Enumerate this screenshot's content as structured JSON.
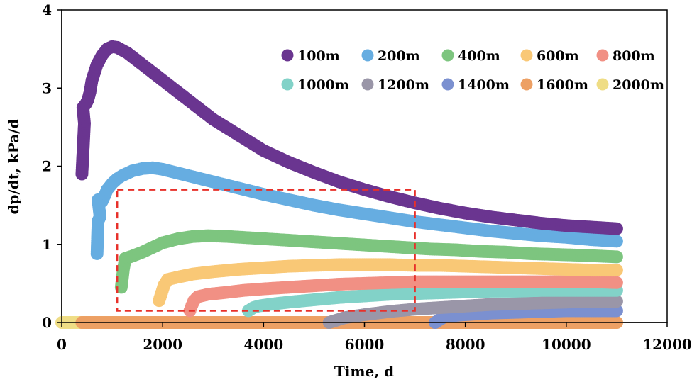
{
  "chart_data": {
    "type": "scatter",
    "title": "",
    "xlabel": "Time, d",
    "ylabel": "dp/dt, kPa/d",
    "xlim": [
      0,
      12000
    ],
    "ylim": [
      0,
      4
    ],
    "xticks": [
      0,
      2000,
      4000,
      6000,
      8000,
      10000,
      12000
    ],
    "yticks": [
      0,
      1,
      2,
      3,
      4
    ],
    "xtick_labels": [
      "0",
      "2000",
      "4000",
      "6000",
      "8000",
      "10000",
      "12000"
    ],
    "ytick_labels": [
      "0",
      "1",
      "2",
      "3",
      "4"
    ],
    "legend_position": "top-right",
    "highlight_box": {
      "x_range": [
        1100,
        7000
      ],
      "y_range": [
        0.15,
        1.7
      ],
      "color": "#e8302a",
      "style": "dashed"
    },
    "series": [
      {
        "name": "100m",
        "color": "#6a3590",
        "points": [
          [
            400,
            1.9
          ],
          [
            450,
            2.55
          ],
          [
            420,
            2.75
          ],
          [
            480,
            2.8
          ],
          [
            520,
            2.85
          ],
          [
            560,
            2.95
          ],
          [
            600,
            3.1
          ],
          [
            650,
            3.2
          ],
          [
            700,
            3.3
          ],
          [
            800,
            3.42
          ],
          [
            900,
            3.5
          ],
          [
            1000,
            3.53
          ],
          [
            1100,
            3.52
          ],
          [
            1300,
            3.45
          ],
          [
            1600,
            3.3
          ],
          [
            2000,
            3.1
          ],
          [
            2500,
            2.85
          ],
          [
            3000,
            2.6
          ],
          [
            3500,
            2.4
          ],
          [
            4000,
            2.2
          ],
          [
            4500,
            2.05
          ],
          [
            5000,
            1.92
          ],
          [
            5500,
            1.8
          ],
          [
            6000,
            1.7
          ],
          [
            6500,
            1.61
          ],
          [
            7000,
            1.53
          ],
          [
            7500,
            1.46
          ],
          [
            8000,
            1.4
          ],
          [
            8500,
            1.35
          ],
          [
            9000,
            1.31
          ],
          [
            9500,
            1.27
          ],
          [
            10000,
            1.24
          ],
          [
            10500,
            1.22
          ],
          [
            11000,
            1.2
          ]
        ]
      },
      {
        "name": "200m",
        "color": "#66ade1",
        "points": [
          [
            700,
            0.88
          ],
          [
            720,
            1.3
          ],
          [
            760,
            1.35
          ],
          [
            720,
            1.57
          ],
          [
            800,
            1.55
          ],
          [
            850,
            1.62
          ],
          [
            900,
            1.7
          ],
          [
            1000,
            1.78
          ],
          [
            1100,
            1.84
          ],
          [
            1200,
            1.88
          ],
          [
            1400,
            1.94
          ],
          [
            1600,
            1.97
          ],
          [
            1800,
            1.98
          ],
          [
            2000,
            1.96
          ],
          [
            2500,
            1.88
          ],
          [
            3000,
            1.8
          ],
          [
            3500,
            1.72
          ],
          [
            4000,
            1.64
          ],
          [
            4500,
            1.57
          ],
          [
            5000,
            1.5
          ],
          [
            5500,
            1.44
          ],
          [
            6000,
            1.39
          ],
          [
            6500,
            1.34
          ],
          [
            7000,
            1.29
          ],
          [
            7500,
            1.25
          ],
          [
            8000,
            1.21
          ],
          [
            8500,
            1.17
          ],
          [
            9000,
            1.14
          ],
          [
            9500,
            1.11
          ],
          [
            10000,
            1.09
          ],
          [
            10500,
            1.06
          ],
          [
            11000,
            1.04
          ]
        ]
      },
      {
        "name": "400m",
        "color": "#7dc57f",
        "points": [
          [
            1180,
            0.45
          ],
          [
            1220,
            0.67
          ],
          [
            1260,
            0.82
          ],
          [
            1400,
            0.85
          ],
          [
            1600,
            0.9
          ],
          [
            1800,
            0.96
          ],
          [
            2000,
            1.02
          ],
          [
            2300,
            1.07
          ],
          [
            2600,
            1.1
          ],
          [
            2900,
            1.11
          ],
          [
            3300,
            1.1
          ],
          [
            3800,
            1.08
          ],
          [
            4300,
            1.06
          ],
          [
            4800,
            1.04
          ],
          [
            5300,
            1.02
          ],
          [
            5800,
            1.0
          ],
          [
            6300,
            0.98
          ],
          [
            6800,
            0.96
          ],
          [
            7300,
            0.94
          ],
          [
            7800,
            0.93
          ],
          [
            8300,
            0.91
          ],
          [
            8800,
            0.9
          ],
          [
            9300,
            0.88
          ],
          [
            9800,
            0.87
          ],
          [
            10300,
            0.86
          ],
          [
            11000,
            0.84
          ]
        ]
      },
      {
        "name": "600m",
        "color": "#f9c876",
        "points": [
          [
            1930,
            0.28
          ],
          [
            1980,
            0.38
          ],
          [
            2030,
            0.48
          ],
          [
            2100,
            0.55
          ],
          [
            2300,
            0.58
          ],
          [
            2600,
            0.62
          ],
          [
            3000,
            0.65
          ],
          [
            3500,
            0.68
          ],
          [
            4000,
            0.7
          ],
          [
            4500,
            0.72
          ],
          [
            5000,
            0.73
          ],
          [
            5500,
            0.74
          ],
          [
            6000,
            0.74
          ],
          [
            6500,
            0.74
          ],
          [
            7000,
            0.73
          ],
          [
            7500,
            0.73
          ],
          [
            8000,
            0.72
          ],
          [
            8500,
            0.71
          ],
          [
            9000,
            0.7
          ],
          [
            9500,
            0.69
          ],
          [
            10000,
            0.68
          ],
          [
            10500,
            0.67
          ],
          [
            11000,
            0.67
          ]
        ]
      },
      {
        "name": "800m",
        "color": "#f19084",
        "points": [
          [
            2540,
            0.15
          ],
          [
            2580,
            0.22
          ],
          [
            2620,
            0.28
          ],
          [
            2700,
            0.33
          ],
          [
            2900,
            0.36
          ],
          [
            3200,
            0.38
          ],
          [
            3600,
            0.41
          ],
          [
            4000,
            0.43
          ],
          [
            4500,
            0.45
          ],
          [
            5000,
            0.47
          ],
          [
            5500,
            0.49
          ],
          [
            6000,
            0.5
          ],
          [
            6500,
            0.51
          ],
          [
            7000,
            0.52
          ],
          [
            7500,
            0.52
          ],
          [
            8000,
            0.52
          ],
          [
            8500,
            0.52
          ],
          [
            9000,
            0.52
          ],
          [
            9500,
            0.52
          ],
          [
            10000,
            0.52
          ],
          [
            10500,
            0.52
          ],
          [
            11000,
            0.51
          ]
        ]
      },
      {
        "name": "1000m",
        "color": "#82d2c8",
        "points": [
          [
            3700,
            0.15
          ],
          [
            3800,
            0.19
          ],
          [
            3900,
            0.21
          ],
          [
            4100,
            0.23
          ],
          [
            4500,
            0.26
          ],
          [
            5000,
            0.29
          ],
          [
            5500,
            0.32
          ],
          [
            6000,
            0.34
          ],
          [
            6500,
            0.36
          ],
          [
            7000,
            0.37
          ],
          [
            7500,
            0.38
          ],
          [
            8000,
            0.39
          ],
          [
            8500,
            0.4
          ],
          [
            9000,
            0.4
          ],
          [
            9500,
            0.41
          ],
          [
            10000,
            0.41
          ],
          [
            10500,
            0.41
          ],
          [
            11000,
            0.41
          ]
        ]
      },
      {
        "name": "1200m",
        "color": "#9a96a8",
        "points": [
          [
            5300,
            0.0
          ],
          [
            5600,
            0.06
          ],
          [
            6000,
            0.1
          ],
          [
            6500,
            0.14
          ],
          [
            7000,
            0.17
          ],
          [
            7500,
            0.19
          ],
          [
            8000,
            0.21
          ],
          [
            8500,
            0.23
          ],
          [
            9000,
            0.24
          ],
          [
            9500,
            0.25
          ],
          [
            10000,
            0.26
          ],
          [
            10500,
            0.27
          ],
          [
            11000,
            0.27
          ]
        ]
      },
      {
        "name": "1400m",
        "color": "#7b90d0",
        "points": [
          [
            7400,
            0.0
          ],
          [
            7600,
            0.08
          ],
          [
            8000,
            0.1
          ],
          [
            8500,
            0.12
          ],
          [
            9000,
            0.13
          ],
          [
            9500,
            0.14
          ],
          [
            10000,
            0.15
          ],
          [
            10500,
            0.15
          ],
          [
            11000,
            0.15
          ]
        ]
      },
      {
        "name": "1600m",
        "color": "#eda064",
        "points": [
          [
            400,
            0.0
          ],
          [
            2000,
            0.0
          ],
          [
            4000,
            0.0
          ],
          [
            6000,
            0.0
          ],
          [
            8000,
            0.0
          ],
          [
            10000,
            0.0
          ],
          [
            11000,
            0.0
          ]
        ]
      },
      {
        "name": "2000m",
        "color": "#efdd85",
        "points": [
          [
            0,
            0.0
          ],
          [
            1000,
            0.0
          ],
          [
            2000,
            0.0
          ],
          [
            3000,
            0.0
          ],
          [
            4000,
            0.0
          ],
          [
            5000,
            0.0
          ],
          [
            6000,
            0.0
          ],
          [
            7000,
            0.0
          ],
          [
            8000,
            0.0
          ],
          [
            9000,
            0.0
          ],
          [
            10000,
            0.0
          ],
          [
            11000,
            0.0
          ]
        ]
      }
    ]
  }
}
